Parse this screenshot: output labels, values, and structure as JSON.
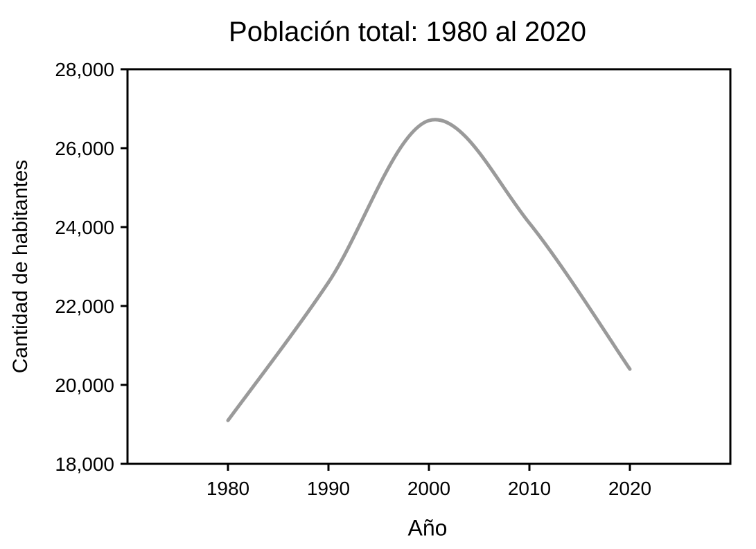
{
  "chart_data": {
    "type": "line",
    "title": "Población total: 1980 al 2020",
    "xlabel": "Año",
    "ylabel": "Cantidad de habitantes",
    "x": [
      1980,
      1990,
      2000,
      2010,
      2020
    ],
    "series": [
      {
        "name": "Población total",
        "values": [
          19100,
          22600,
          26700,
          24100,
          20400
        ]
      }
    ],
    "xticks": [
      1980,
      1990,
      2000,
      2010,
      2020
    ],
    "yticks": [
      18000,
      20000,
      22000,
      24000,
      26000,
      28000
    ],
    "xlim": [
      1970,
      2030
    ],
    "ylim": [
      18000,
      28000
    ],
    "grid": false,
    "legend_position": "none",
    "smooth": true,
    "line_color": "#9a9a9a",
    "line_width": 5,
    "axis_color": "#000000",
    "background_color": "#ffffff"
  }
}
